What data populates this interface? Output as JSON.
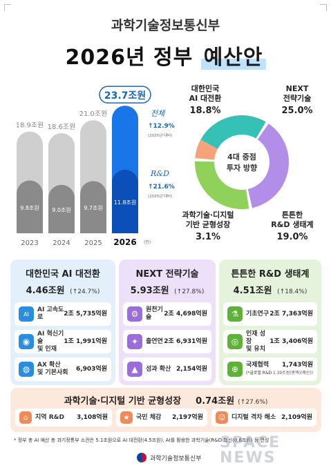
{
  "header": {
    "ministry": "과학기술정보통신부",
    "title_prefix": "2026년 정부",
    "title_highlight": "예산안"
  },
  "chart_data": [
    {
      "type": "bar",
      "categories": [
        "2023",
        "2024",
        "2025",
        "2026"
      ],
      "x_suffix_2026": "(안)",
      "series": [
        {
          "name": "전체",
          "values": [
            18.9,
            18.6,
            21.0,
            23.7
          ],
          "labels": [
            "18.9조원",
            "18.6조원",
            "21.0조원",
            "23.7조원"
          ]
        },
        {
          "name": "R&D",
          "values": [
            9.8,
            9.0,
            9.7,
            11.8
          ],
          "labels": [
            "9.8조원",
            "9.0조원",
            "9.7조원",
            "11.8조원"
          ]
        }
      ],
      "annotations": {
        "total_label": "전체",
        "total_change": "12.9%",
        "total_change_note": "(2025년 대비)",
        "rnd_label": "R&D",
        "rnd_change": "21.6%",
        "rnd_change_note": "(2025년 대비)"
      },
      "ylim": [
        0,
        25
      ]
    },
    {
      "type": "pie",
      "center_label_line1": "4대 중점",
      "center_label_line2": "투자 방향",
      "slices": [
        {
          "name": "대한민국 AI 대전환",
          "value": 18.8,
          "label": "18.8%",
          "color": "#35c1b5"
        },
        {
          "name": "NEXT 전략기술",
          "value": 25.0,
          "label": "25.0%",
          "color": "#b38ee8"
        },
        {
          "name": "튼튼한 R&D 생태계",
          "value": 19.0,
          "label": "19.0%",
          "color": "#8fd15b"
        },
        {
          "name": "과학기술·디지털 기반 균형성장",
          "value": 3.1,
          "label": "3.1%",
          "color": "#f6a37a"
        }
      ]
    }
  ],
  "donut_labels": {
    "ai_l1": "대한민국",
    "ai_l2": "AI 대전환",
    "ai_pct": "18.8%",
    "next_l1": "NEXT",
    "next_l2": "전략기술",
    "next_pct": "25.0%",
    "rnd_l1": "튼튼한",
    "rnd_l2": "R&D 생태계",
    "rnd_pct": "19.0%",
    "bal_l1": "과학기술·디지털",
    "bal_l2": "기반 균형성장",
    "bal_pct": "3.1%"
  },
  "panels": {
    "ai": {
      "title": "대한민국 AI 대전환",
      "amount": "4.46조원",
      "change": "24.7%",
      "items": [
        {
          "label_1": "AI 고속도로",
          "label_2": "",
          "value": "2조 5,735억원",
          "icon": "AI"
        },
        {
          "label_1": "AI 혁신기술",
          "label_2": "및 인재",
          "value": "1조 1,991억원",
          "icon": "◉"
        },
        {
          "label_1": "AX 확산",
          "label_2": "및 기본사회",
          "value": "6,903억원",
          "icon": "◍"
        }
      ]
    },
    "next": {
      "title": "NEXT 전략기술",
      "amount": "5.93조원",
      "change": "27.8%",
      "items": [
        {
          "label_1": "원천기술",
          "label_2": "",
          "value": "2조 4,698억원",
          "icon": "⚙"
        },
        {
          "label_1": "출연연",
          "label_2": "",
          "value": "2조 6,931억원",
          "icon": "✦"
        },
        {
          "label_1": "성과 확산",
          "label_2": "",
          "value": "2,154억원",
          "icon": "▲"
        }
      ]
    },
    "rnd": {
      "title": "튼튼한 R&D 생태계",
      "amount": "4.51조원",
      "change": "18.4%",
      "items": [
        {
          "label_1": "기초연구",
          "label_2": "",
          "value": "2조 7,363억원",
          "sub": "",
          "icon": "⚗"
        },
        {
          "label_1": "인재 성장",
          "label_2": "및 유치",
          "value": "1조 3,406억원",
          "sub": "",
          "icon": "◎"
        },
        {
          "label_1": "국제협력",
          "label_2": "(*글로벌 R&D",
          "value": "1,743억원",
          "sub": "1.39조원(총액)(예산))",
          "icon": "⊕"
        }
      ]
    },
    "balance": {
      "title": "과학기술·디지털 기반 균형성장",
      "amount": "0.74조원",
      "change": "27.6%",
      "items": [
        {
          "label": "지역 R&D",
          "value": "3,108억원",
          "icon": "⌂"
        },
        {
          "label": "국민 체감",
          "value": "2,197억원",
          "icon": "★"
        },
        {
          "label": "디지털 격차 해소",
          "value": "2,109억원",
          "icon": "☺"
        }
      ]
    }
  },
  "footnote": "* 정부 총 AI 예산 총 과기정통부 소관은 5.1조원으로 AI 대전환(4.5조원), AI를 활용한 과학기술(R&D 혁신(0.6조원) 등 편성",
  "footer_org": "과학기술정보통신부",
  "watermark": "SPACE NEWS",
  "colors": {
    "bar_gray": "#a8a8a8",
    "bar_blue": "#1976e8",
    "panel_ai": "#e3f0fb",
    "panel_next": "#ece1f8",
    "panel_rnd": "#e5f3dc",
    "panel_balance": "#fde8dc"
  }
}
